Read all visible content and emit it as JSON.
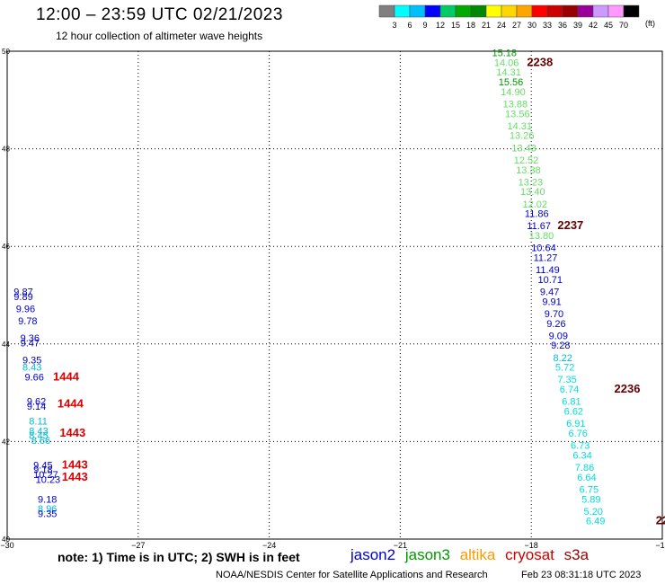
{
  "header": {
    "title": "12:00 – 23:59 UTC 02/21/2023",
    "subtitle": "12 hour collection of altimeter wave heights"
  },
  "colorbar": {
    "units": "(ft)",
    "labels": [
      "3",
      "6",
      "9",
      "12",
      "15",
      "18",
      "21",
      "24",
      "27",
      "30",
      "33",
      "36",
      "39",
      "42",
      "45",
      "70"
    ],
    "colors": [
      "#808080",
      "#00ffff",
      "#00bfff",
      "#0000ff",
      "#00cc66",
      "#00aa00",
      "#008800",
      "#ffff00",
      "#ffd700",
      "#ffa500",
      "#ff0000",
      "#cc0000",
      "#990000",
      "#990099",
      "#cc99ff",
      "#ff99ff",
      "#000000"
    ]
  },
  "footer": {
    "note": "note:  1) Time is in UTC;  2) SWH is in feet",
    "credit": "NOAA/NESDIS Center for Satellite Applications and Research",
    "timestamp": "Feb 23 08:31:18 UTC 2023"
  },
  "legend": [
    {
      "name": "jason2",
      "color": "#0000cc"
    },
    {
      "name": "jason3",
      "color": "#009900"
    },
    {
      "name": "altika",
      "color": "#ff9900"
    },
    {
      "name": "cryosat",
      "color": "#cc0000"
    },
    {
      "name": "s3a",
      "color": "#990000"
    }
  ],
  "chart_data": {
    "type": "scatter",
    "title": "12:00 – 23:59 UTC 02/21/2023",
    "xlim": [
      -30,
      -15
    ],
    "ylim": [
      40,
      50
    ],
    "xticks": [
      -30,
      -27,
      -24,
      -21,
      -18,
      -15
    ],
    "yticks": [
      40,
      42,
      44,
      46,
      48,
      50
    ],
    "grid": true,
    "wave_heights": [
      {
        "lon": -18.9,
        "lat": 49.9,
        "label": "15.18",
        "color": "#009900"
      },
      {
        "lon": -18.85,
        "lat": 49.7,
        "label": "14.06",
        "color": "#66dd66"
      },
      {
        "lon": -18.8,
        "lat": 49.5,
        "label": "14.31",
        "color": "#66dd66"
      },
      {
        "lon": -18.75,
        "lat": 49.3,
        "label": "15.56",
        "color": "#009900"
      },
      {
        "lon": -18.7,
        "lat": 49.1,
        "label": "14.90",
        "color": "#66dd66"
      },
      {
        "lon": -18.65,
        "lat": 48.85,
        "label": "13.88",
        "color": "#66dd66"
      },
      {
        "lon": -18.6,
        "lat": 48.65,
        "label": "13.56",
        "color": "#66dd66"
      },
      {
        "lon": -18.55,
        "lat": 48.4,
        "label": "14.31",
        "color": "#66dd66"
      },
      {
        "lon": -18.5,
        "lat": 48.2,
        "label": "13.26",
        "color": "#66dd66"
      },
      {
        "lon": -18.45,
        "lat": 47.95,
        "label": "13.43",
        "color": "#66dd66"
      },
      {
        "lon": -18.4,
        "lat": 47.7,
        "label": "12.52",
        "color": "#66dd66"
      },
      {
        "lon": -18.35,
        "lat": 47.5,
        "label": "13.38",
        "color": "#66dd66"
      },
      {
        "lon": -18.3,
        "lat": 47.25,
        "label": "13.23",
        "color": "#66dd66"
      },
      {
        "lon": -18.25,
        "lat": 47.05,
        "label": "13.40",
        "color": "#66dd66"
      },
      {
        "lon": -18.2,
        "lat": 46.8,
        "label": "12.02",
        "color": "#66dd66"
      },
      {
        "lon": -18.15,
        "lat": 46.6,
        "label": "11.86",
        "color": "#0000cc"
      },
      {
        "lon": -18.1,
        "lat": 46.35,
        "label": "11.67",
        "color": "#0000cc"
      },
      {
        "lon": -18.05,
        "lat": 46.15,
        "label": "13.80",
        "color": "#66dd66"
      },
      {
        "lon": -18.0,
        "lat": 45.9,
        "label": "10.64",
        "color": "#0000cc"
      },
      {
        "lon": -17.95,
        "lat": 45.7,
        "label": "11.27",
        "color": "#0000cc"
      },
      {
        "lon": -17.9,
        "lat": 45.45,
        "label": "11.49",
        "color": "#0000cc"
      },
      {
        "lon": -17.85,
        "lat": 45.25,
        "label": "10.71",
        "color": "#0000cc"
      },
      {
        "lon": -17.8,
        "lat": 45.0,
        "label": "9.47",
        "color": "#0000cc"
      },
      {
        "lon": -17.75,
        "lat": 44.8,
        "label": "9.91",
        "color": "#0000cc"
      },
      {
        "lon": -17.7,
        "lat": 44.55,
        "label": "9.70",
        "color": "#0000cc"
      },
      {
        "lon": -17.65,
        "lat": 44.35,
        "label": "9.26",
        "color": "#0000cc"
      },
      {
        "lon": -17.6,
        "lat": 44.1,
        "label": "9.09",
        "color": "#0000cc"
      },
      {
        "lon": -17.55,
        "lat": 43.9,
        "label": "9.28",
        "color": "#0000cc"
      },
      {
        "lon": -17.5,
        "lat": 43.65,
        "label": "8.22",
        "color": "#00bbdd"
      },
      {
        "lon": -17.45,
        "lat": 43.45,
        "label": "5.72",
        "color": "#00dddd"
      },
      {
        "lon": -17.4,
        "lat": 43.2,
        "label": "7.35",
        "color": "#00dddd"
      },
      {
        "lon": -17.35,
        "lat": 43.0,
        "label": "6.74",
        "color": "#00dddd"
      },
      {
        "lon": -17.3,
        "lat": 42.75,
        "label": "6.81",
        "color": "#00dddd"
      },
      {
        "lon": -17.25,
        "lat": 42.55,
        "label": "6.62",
        "color": "#00dddd"
      },
      {
        "lon": -17.2,
        "lat": 42.3,
        "label": "6.91",
        "color": "#00dddd"
      },
      {
        "lon": -17.15,
        "lat": 42.1,
        "label": "6.76",
        "color": "#00dddd"
      },
      {
        "lon": -17.1,
        "lat": 41.85,
        "label": "6.73",
        "color": "#00dddd"
      },
      {
        "lon": -17.05,
        "lat": 41.65,
        "label": "6.34",
        "color": "#00dddd"
      },
      {
        "lon": -17.0,
        "lat": 41.4,
        "label": "7.86",
        "color": "#00dddd"
      },
      {
        "lon": -16.95,
        "lat": 41.2,
        "label": "6.64",
        "color": "#00dddd"
      },
      {
        "lon": -16.9,
        "lat": 40.95,
        "label": "6.75",
        "color": "#00dddd"
      },
      {
        "lon": -16.85,
        "lat": 40.75,
        "label": "5.89",
        "color": "#00dddd"
      },
      {
        "lon": -16.8,
        "lat": 40.5,
        "label": "5.20",
        "color": "#00dddd"
      },
      {
        "lon": -16.75,
        "lat": 40.3,
        "label": "6.49",
        "color": "#00dddd"
      },
      {
        "lon": -29.85,
        "lat": 45.0,
        "label": "9.87",
        "color": "#0000cc"
      },
      {
        "lon": -29.85,
        "lat": 44.9,
        "label": "9.89",
        "color": "#0000cc"
      },
      {
        "lon": -29.8,
        "lat": 44.65,
        "label": "9.96",
        "color": "#0000cc"
      },
      {
        "lon": -29.75,
        "lat": 44.4,
        "label": "9.78",
        "color": "#0000cc"
      },
      {
        "lon": -29.7,
        "lat": 44.05,
        "label": "9.36",
        "color": "#0000cc"
      },
      {
        "lon": -29.7,
        "lat": 43.95,
        "label": "9.47",
        "color": "#0000cc"
      },
      {
        "lon": -29.65,
        "lat": 43.6,
        "label": "9.35",
        "color": "#0000cc"
      },
      {
        "lon": -29.65,
        "lat": 43.45,
        "label": "8.43",
        "color": "#00bbdd"
      },
      {
        "lon": -29.6,
        "lat": 43.25,
        "label": "9.66",
        "color": "#0000cc"
      },
      {
        "lon": -29.55,
        "lat": 42.75,
        "label": "9.62",
        "color": "#0000cc"
      },
      {
        "lon": -29.55,
        "lat": 42.65,
        "label": "9.14",
        "color": "#0000cc"
      },
      {
        "lon": -29.5,
        "lat": 42.35,
        "label": "8.11",
        "color": "#00bbdd"
      },
      {
        "lon": -29.5,
        "lat": 42.15,
        "label": "8.43",
        "color": "#00bbdd"
      },
      {
        "lon": -29.5,
        "lat": 42.05,
        "label": "8.45",
        "color": "#00bbdd"
      },
      {
        "lon": -29.45,
        "lat": 41.95,
        "label": "8.66",
        "color": "#00bbdd"
      },
      {
        "lon": -29.4,
        "lat": 41.45,
        "label": "9.45",
        "color": "#0000cc"
      },
      {
        "lon": -29.4,
        "lat": 41.35,
        "label": "9.18",
        "color": "#0000cc"
      },
      {
        "lon": -29.4,
        "lat": 41.25,
        "label": "10.27",
        "color": "#0000cc"
      },
      {
        "lon": -29.35,
        "lat": 41.15,
        "label": "10.23",
        "color": "#0000cc"
      },
      {
        "lon": -29.3,
        "lat": 40.75,
        "label": "9.18",
        "color": "#0000cc"
      },
      {
        "lon": -29.3,
        "lat": 40.55,
        "label": "8.96",
        "color": "#00bbdd"
      },
      {
        "lon": -29.3,
        "lat": 40.45,
        "label": "9.35",
        "color": "#0000cc"
      }
    ],
    "time_labels": [
      {
        "lon": -18.1,
        "lat": 49.7,
        "label": "2238",
        "color": "#660000"
      },
      {
        "lon": -17.4,
        "lat": 46.35,
        "label": "2237",
        "color": "#660000"
      },
      {
        "lon": -16.1,
        "lat": 43.0,
        "label": "2236",
        "color": "#660000"
      },
      {
        "lon": -15.15,
        "lat": 40.3,
        "label": "22",
        "color": "#660000"
      },
      {
        "lon": -28.95,
        "lat": 43.25,
        "label": "1444",
        "color": "#dd0000"
      },
      {
        "lon": -28.85,
        "lat": 42.7,
        "label": "1444",
        "color": "#dd0000"
      },
      {
        "lon": -28.8,
        "lat": 42.1,
        "label": "1443",
        "color": "#dd0000"
      },
      {
        "lon": -28.75,
        "lat": 41.45,
        "label": "1443",
        "color": "#dd0000"
      },
      {
        "lon": -28.75,
        "lat": 41.2,
        "label": "1443",
        "color": "#dd0000"
      }
    ]
  }
}
